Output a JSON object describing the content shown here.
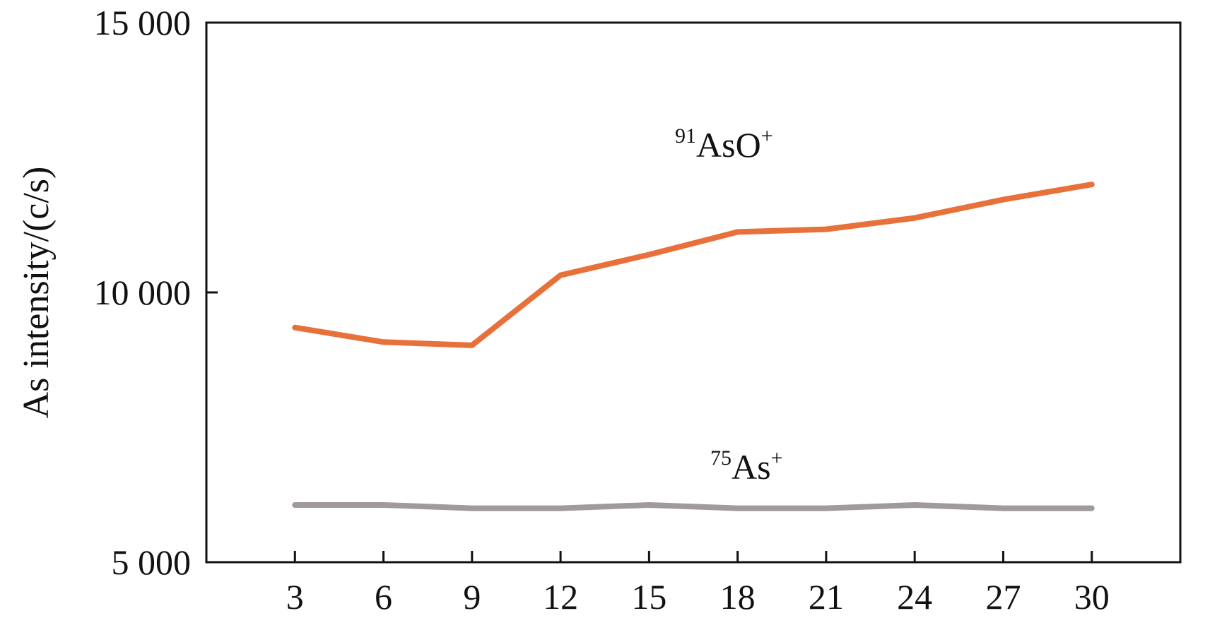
{
  "chart_data": {
    "type": "line",
    "title": "",
    "xlabel": "",
    "ylabel": "As intensity/(c/s)",
    "x": [
      3,
      6,
      9,
      12,
      15,
      18,
      21,
      24,
      27,
      30
    ],
    "xlim": [
      0,
      33
    ],
    "ylim": [
      5000,
      15000
    ],
    "y_ticks": [
      5000,
      10000,
      15000
    ],
    "y_tick_labels": [
      "5 000",
      "10 000",
      "15 000"
    ],
    "x_tick_labels": [
      "3",
      "6",
      "9",
      "12",
      "15",
      "18",
      "21",
      "24",
      "27",
      "30"
    ],
    "grid": false,
    "legend": "none",
    "series": [
      {
        "label_mass": "91",
        "label_species": "AsO",
        "label_charge": "+",
        "color": "#E8703A",
        "values": [
          9350,
          9080,
          9020,
          10320,
          10700,
          11120,
          11170,
          11380,
          11720,
          12000
        ]
      },
      {
        "label_mass": "75",
        "label_species": "As",
        "label_charge": "+",
        "color": "#A09A9A",
        "values": [
          6060,
          6060,
          6000,
          6000,
          6060,
          6000,
          6000,
          6060,
          6000,
          6000
        ]
      }
    ]
  }
}
